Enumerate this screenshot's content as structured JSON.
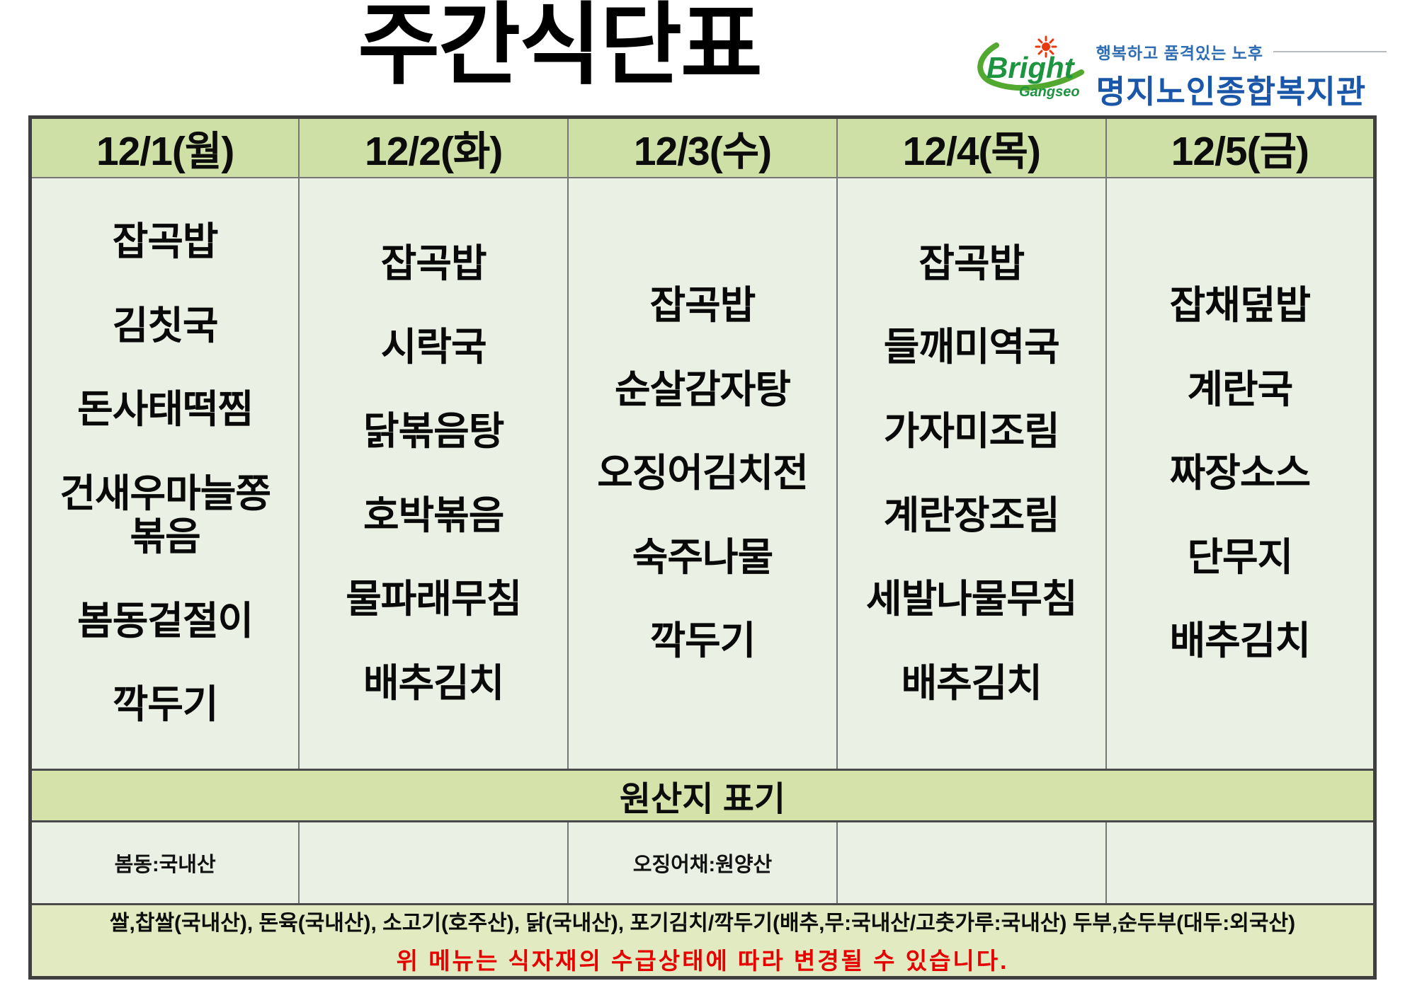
{
  "title": "주간식단표",
  "logo": {
    "brand_top": "Bright",
    "brand_bottom": "Gangseo",
    "tagline": "행복하고 품격있는 노후",
    "org_name": "명지노인종합복지관",
    "brand_green": "#2f9e41",
    "star_red": "#e8380d",
    "org_blue": "#1b57a8"
  },
  "table": {
    "days": [
      {
        "date": "12/1(월)",
        "menu": [
          "잡곡밥",
          "김칫국",
          "돈사태떡찜",
          "건새우마늘쫑\n볶음",
          "봄동겉절이",
          "깍두기"
        ],
        "origin": "봄동:국내산"
      },
      {
        "date": "12/2(화)",
        "menu": [
          "잡곡밥",
          "시락국",
          "닭볶음탕",
          "호박볶음",
          "물파래무침",
          "배추김치"
        ],
        "origin": ""
      },
      {
        "date": "12/3(수)",
        "menu": [
          "잡곡밥",
          "순살감자탕",
          "오징어김치전",
          "숙주나물",
          "깍두기"
        ],
        "origin": "오징어채:원양산"
      },
      {
        "date": "12/4(목)",
        "menu": [
          "잡곡밥",
          "들깨미역국",
          "가자미조림",
          "계란장조림",
          "세발나물무침",
          "배추김치"
        ],
        "origin": ""
      },
      {
        "date": "12/5(금)",
        "menu": [
          "잡채덮밥",
          "계란국",
          "짜장소스",
          "단무지",
          "배추김치"
        ],
        "origin": ""
      }
    ],
    "origin_banner": "원산지 표기",
    "footer_line1": "쌀,찹쌀(국내산), 돈육(국내산), 소고기(호주산), 닭(국내산), 포기김치/깍두기(배추,무:국내산/고춧가루:국내산) 두부,순두부(대두:외국산)",
    "footer_line2": "위 메뉴는 식자재의 수급상태에 따라 변경될 수 있습니다."
  }
}
